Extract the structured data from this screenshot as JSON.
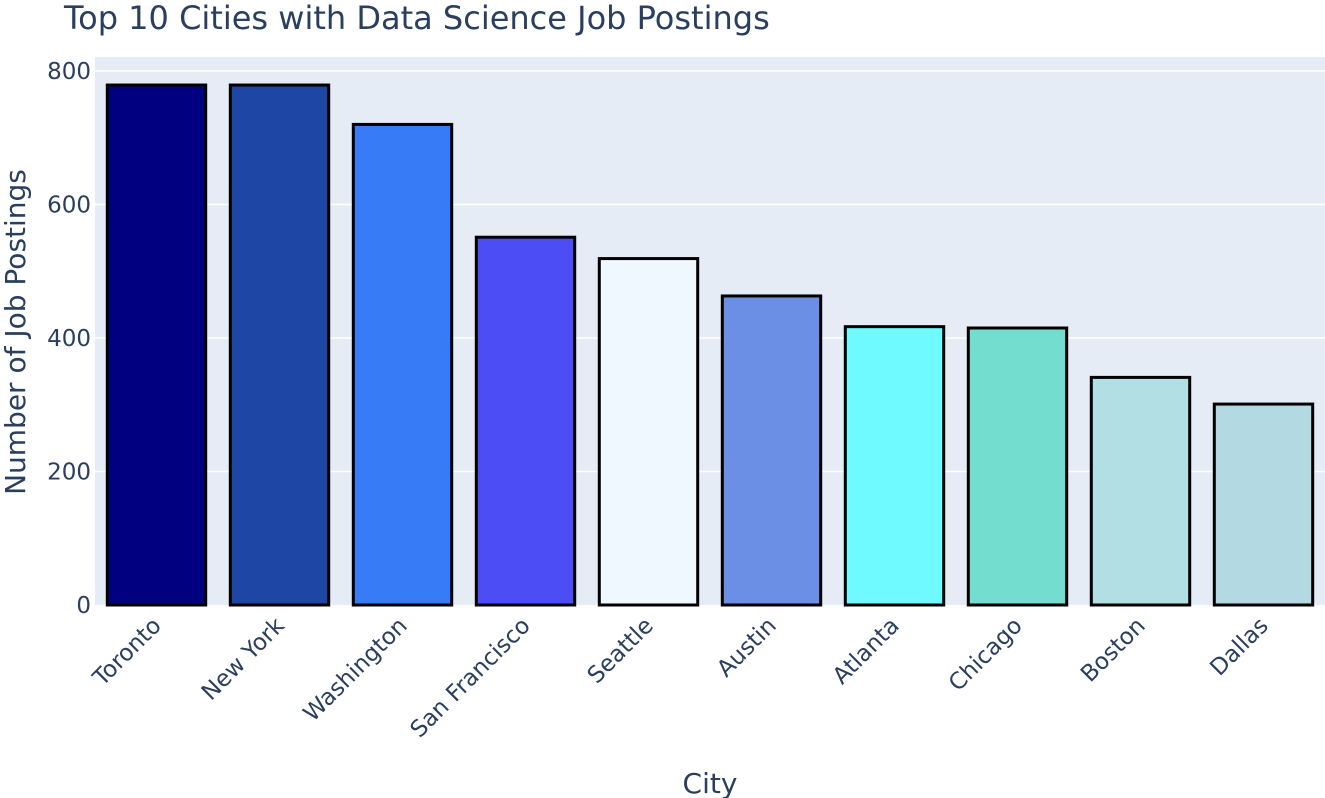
{
  "chart_data": {
    "type": "bar",
    "title": "Top 10 Cities with Data Science Job Postings",
    "xlabel": "City",
    "ylabel": "Number of Job Postings",
    "categories": [
      "Toronto",
      "New York",
      "Washington",
      "San Francisco",
      "Seattle",
      "Austin",
      "Atlanta",
      "Chicago",
      "Boston",
      "Dallas"
    ],
    "values": [
      779,
      779,
      720,
      551,
      519,
      463,
      417,
      415,
      341,
      301
    ],
    "colors": [
      "#000080",
      "#1e46a5",
      "#377cf6",
      "#4d4df6",
      "#f0f8ff",
      "#6b8fe4",
      "#6ffaff",
      "#73ddd0",
      "#b2dfe3",
      "#b3d9e3"
    ],
    "bar_outline": "#000000",
    "yticks": [
      0,
      200,
      400,
      600,
      800
    ],
    "ylim": [
      0,
      821
    ],
    "grid": true,
    "plot_bg": "#e5ecf6",
    "grid_color": "#ffffff",
    "legend": "none"
  }
}
